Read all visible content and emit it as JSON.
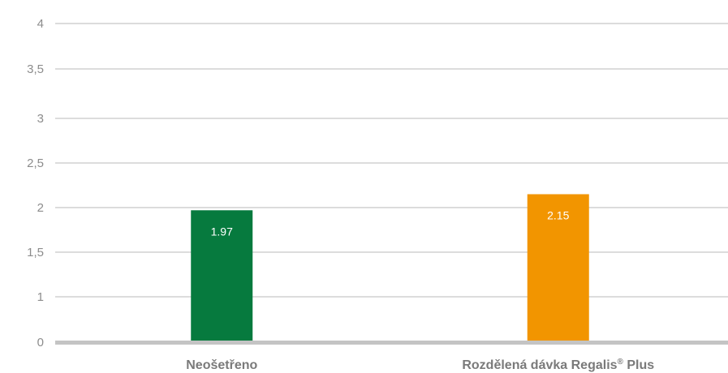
{
  "chart_data": {
    "type": "bar",
    "categories": [
      "Neošetřeno",
      "Rozdělená dávka Regalis"
    ],
    "category_superscripts": [
      "",
      "®"
    ],
    "category_suffixes": [
      "",
      " Plus"
    ],
    "values": [
      1.97,
      2.15
    ],
    "data_labels": [
      "1.97",
      "2.15"
    ],
    "bar_colors": [
      "#067a3e",
      "#f29500"
    ],
    "y_ticks": [
      0,
      1,
      1.5,
      2,
      2.5,
      3,
      3.5,
      4
    ],
    "y_tick_labels": [
      "0",
      "1",
      "1,5",
      "2",
      "2,5",
      "3",
      "3,5",
      "4"
    ],
    "ylim": [
      0,
      4
    ],
    "grid": true,
    "gridline_color": "#c8c8c8",
    "baseline_color": "#c4c4c4",
    "title": "",
    "xlabel": "",
    "ylabel": ""
  }
}
